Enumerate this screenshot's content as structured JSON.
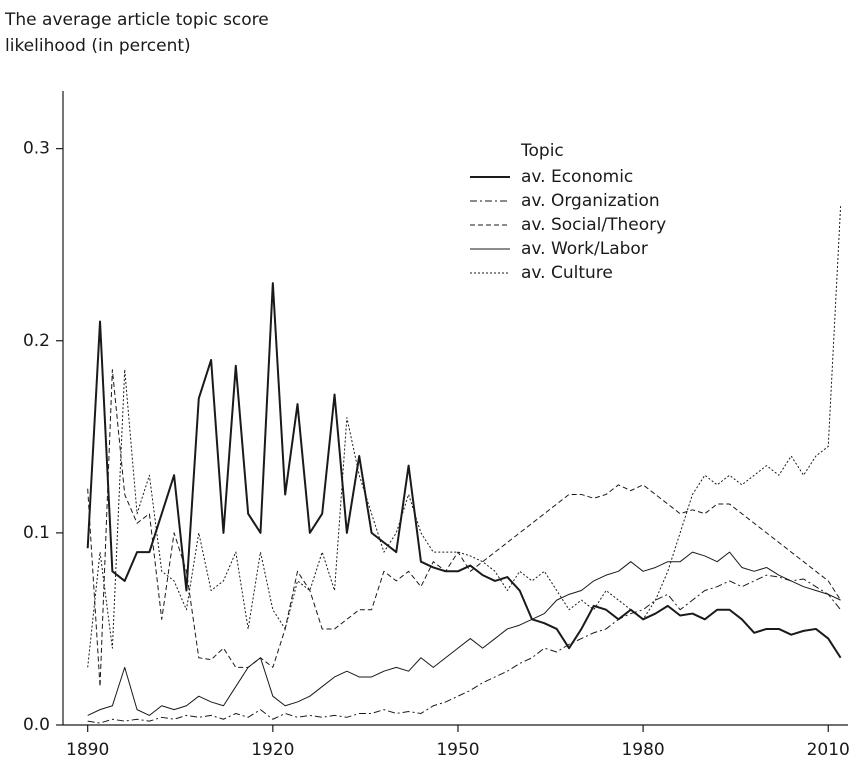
{
  "chart_data": {
    "type": "line",
    "title": [
      "The average article topic score",
      "likelihood (in percent)"
    ],
    "legend_title": "Topic",
    "legend": "upper right",
    "x": [
      1890,
      1892,
      1894,
      1896,
      1898,
      1900,
      1902,
      1904,
      1906,
      1908,
      1910,
      1912,
      1914,
      1916,
      1918,
      1920,
      1922,
      1924,
      1926,
      1928,
      1930,
      1932,
      1934,
      1936,
      1938,
      1940,
      1942,
      1944,
      1946,
      1948,
      1950,
      1952,
      1954,
      1956,
      1958,
      1960,
      1962,
      1964,
      1966,
      1968,
      1970,
      1972,
      1974,
      1976,
      1978,
      1980,
      1982,
      1984,
      1986,
      1988,
      1990,
      1992,
      1994,
      1996,
      1998,
      2000,
      2002,
      2004,
      2006,
      2008,
      2010,
      2012
    ],
    "xlim": [
      1886,
      2013.2
    ],
    "xticks": [
      1890,
      1920,
      1950,
      1980,
      2010
    ],
    "ylim": [
      0,
      0.33
    ],
    "yticks": [
      {
        "value": 0,
        "label": "0.0"
      },
      0.1,
      0.2,
      0.3
    ],
    "series": [
      {
        "name": "av. Economic",
        "color": "#1a1a1a",
        "dash": "solid",
        "width": 2,
        "values": [
          0.092,
          0.21,
          0.08,
          0.075,
          0.09,
          0.09,
          0.11,
          0.13,
          0.07,
          0.17,
          0.19,
          0.1,
          0.187,
          0.11,
          0.1,
          0.23,
          0.12,
          0.167,
          0.1,
          0.11,
          0.172,
          0.1,
          0.14,
          0.1,
          0.095,
          0.09,
          0.135,
          0.085,
          0.082,
          0.08,
          0.08,
          0.083,
          0.078,
          0.075,
          0.077,
          0.07,
          0.055,
          0.053,
          0.05,
          0.04,
          0.05,
          0.062,
          0.06,
          0.055,
          0.06,
          0.055,
          0.058,
          0.062,
          0.057,
          0.058,
          0.055,
          0.06,
          0.06,
          0.055,
          0.048,
          0.05,
          0.05,
          0.047,
          0.049,
          0.05,
          0.045,
          0.035
        ]
      },
      {
        "name": "av. Organization",
        "color": "#1a1a1a",
        "dash": "dashdot",
        "width": 1,
        "values": [
          0.002,
          0.001,
          0.003,
          0.002,
          0.003,
          0.002,
          0.004,
          0.003,
          0.005,
          0.004,
          0.005,
          0.003,
          0.006,
          0.004,
          0.008,
          0.003,
          0.006,
          0.004,
          0.005,
          0.004,
          0.005,
          0.004,
          0.006,
          0.006,
          0.008,
          0.006,
          0.007,
          0.006,
          0.01,
          0.012,
          0.015,
          0.018,
          0.022,
          0.025,
          0.028,
          0.032,
          0.035,
          0.04,
          0.038,
          0.042,
          0.045,
          0.048,
          0.05,
          0.055,
          0.058,
          0.06,
          0.065,
          0.068,
          0.06,
          0.065,
          0.07,
          0.072,
          0.075,
          0.072,
          0.075,
          0.078,
          0.077,
          0.075,
          0.076,
          0.072,
          0.068,
          0.06
        ]
      },
      {
        "name": "av. Social/Theory",
        "color": "#1a1a1a",
        "dash": "dashed",
        "width": 1,
        "values": [
          0.123,
          0.02,
          0.185,
          0.12,
          0.105,
          0.11,
          0.055,
          0.1,
          0.08,
          0.035,
          0.034,
          0.04,
          0.03,
          0.03,
          0.035,
          0.03,
          0.05,
          0.08,
          0.07,
          0.05,
          0.05,
          0.055,
          0.06,
          0.06,
          0.08,
          0.075,
          0.08,
          0.072,
          0.085,
          0.08,
          0.09,
          0.08,
          0.085,
          0.09,
          0.095,
          0.1,
          0.105,
          0.11,
          0.115,
          0.12,
          0.12,
          0.118,
          0.12,
          0.125,
          0.122,
          0.125,
          0.12,
          0.115,
          0.11,
          0.112,
          0.11,
          0.115,
          0.115,
          0.11,
          0.105,
          0.1,
          0.095,
          0.09,
          0.085,
          0.08,
          0.075,
          0.065
        ]
      },
      {
        "name": "av. Work/Labor",
        "color": "#1a1a1a",
        "dash": "solid",
        "width": 1,
        "values": [
          0.005,
          0.008,
          0.01,
          0.03,
          0.008,
          0.005,
          0.01,
          0.008,
          0.01,
          0.015,
          0.012,
          0.01,
          0.02,
          0.03,
          0.035,
          0.015,
          0.01,
          0.012,
          0.015,
          0.02,
          0.025,
          0.028,
          0.025,
          0.025,
          0.028,
          0.03,
          0.028,
          0.035,
          0.03,
          0.035,
          0.04,
          0.045,
          0.04,
          0.045,
          0.05,
          0.052,
          0.055,
          0.058,
          0.065,
          0.068,
          0.07,
          0.075,
          0.078,
          0.08,
          0.085,
          0.08,
          0.082,
          0.085,
          0.085,
          0.09,
          0.088,
          0.085,
          0.09,
          0.082,
          0.08,
          0.082,
          0.078,
          0.075,
          0.072,
          0.07,
          0.068,
          0.065
        ]
      },
      {
        "name": "av. Culture",
        "color": "#1a1a1a",
        "dash": "dotted",
        "width": 1,
        "values": [
          0.03,
          0.09,
          0.04,
          0.185,
          0.11,
          0.13,
          0.08,
          0.075,
          0.06,
          0.1,
          0.07,
          0.075,
          0.09,
          0.05,
          0.09,
          0.06,
          0.05,
          0.075,
          0.07,
          0.09,
          0.07,
          0.16,
          0.13,
          0.11,
          0.09,
          0.1,
          0.12,
          0.1,
          0.09,
          0.09,
          0.09,
          0.088,
          0.085,
          0.08,
          0.07,
          0.08,
          0.075,
          0.08,
          0.07,
          0.06,
          0.065,
          0.06,
          0.07,
          0.065,
          0.06,
          0.055,
          0.065,
          0.08,
          0.1,
          0.12,
          0.13,
          0.125,
          0.13,
          0.125,
          0.13,
          0.135,
          0.13,
          0.14,
          0.13,
          0.14,
          0.145,
          0.27
        ]
      }
    ]
  }
}
